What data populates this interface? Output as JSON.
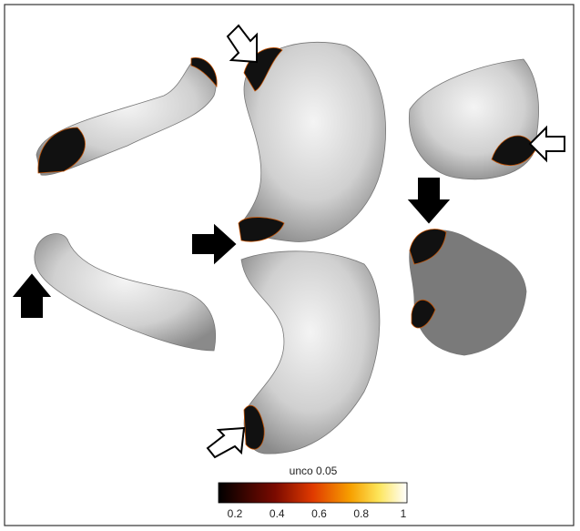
{
  "colorbar": {
    "label": "unco 0.05",
    "ticks": [
      0.2,
      0.4,
      0.6,
      0.8,
      1
    ]
  }
}
